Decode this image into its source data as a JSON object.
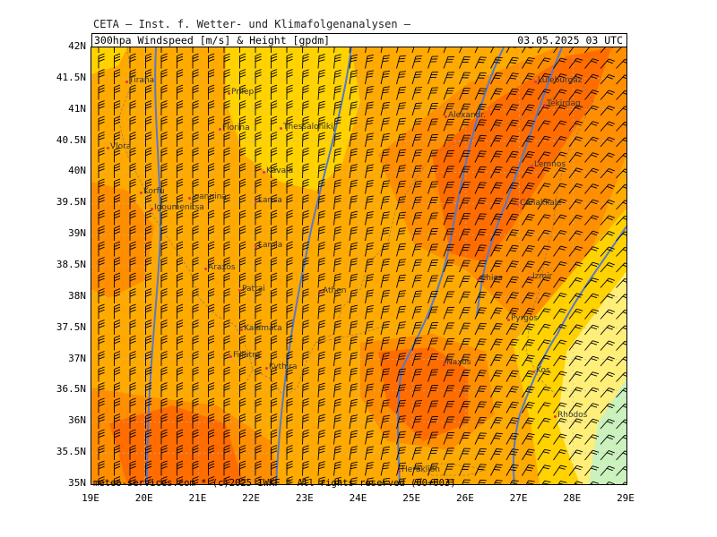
{
  "header": {
    "institute": "CETA — Inst. f. Wetter- und Klimafolgenanalysen —",
    "product": "300hpa Windspeed [m/s] & Height [gpdm]",
    "valid_time": "03.05.2025 03 UTC"
  },
  "footer": "meteo-services.com * (c)2025 IWKF * All rights reserved (00+003)",
  "axes": {
    "lat_ticks": [
      "42N",
      "41.5N",
      "41N",
      "40.5N",
      "40N",
      "39.5N",
      "39N",
      "38.5N",
      "38N",
      "37.5N",
      "37N",
      "36.5N",
      "36N",
      "35.5N",
      "35N"
    ],
    "lon_ticks": [
      "19E",
      "20E",
      "21E",
      "22E",
      "23E",
      "24E",
      "25E",
      "26E",
      "27E",
      "28E",
      "29E"
    ]
  },
  "colors": {
    "wind_lowest": "#c8f0c0",
    "wind_low": "#fff080",
    "wind_mid": "#ffd400",
    "wind_high": "#ffaa00",
    "wind_higher": "#ff8c00",
    "wind_highest": "#ff6a00",
    "height_contour": "#5a78c8",
    "barb": "#000000",
    "city_marker": "#e0305a"
  },
  "cities": [
    {
      "name": "Tirana"
    },
    {
      "name": "Prilep"
    },
    {
      "name": "Florina"
    },
    {
      "name": "Thessaloniki"
    },
    {
      "name": "Vlora"
    },
    {
      "name": "Kavala"
    },
    {
      "name": "Luleburgaz"
    },
    {
      "name": "Tekirdag"
    },
    {
      "name": "Alexandr."
    },
    {
      "name": "Lemnos"
    },
    {
      "name": "Korfu"
    },
    {
      "name": "Ioannina"
    },
    {
      "name": "Igoumenitsa"
    },
    {
      "name": "Larisa"
    },
    {
      "name": "Canakkale"
    },
    {
      "name": "Lamia"
    },
    {
      "name": "Araxos"
    },
    {
      "name": "Patrai"
    },
    {
      "name": "Athen"
    },
    {
      "name": "Chios"
    },
    {
      "name": "Izmir"
    },
    {
      "name": "Pyrgos"
    },
    {
      "name": "Kalamata"
    },
    {
      "name": "Naxos"
    },
    {
      "name": "Kos"
    },
    {
      "name": "Filiatra"
    },
    {
      "name": "Kythira"
    },
    {
      "name": "Rhodos"
    },
    {
      "name": "Heraklion"
    }
  ]
}
